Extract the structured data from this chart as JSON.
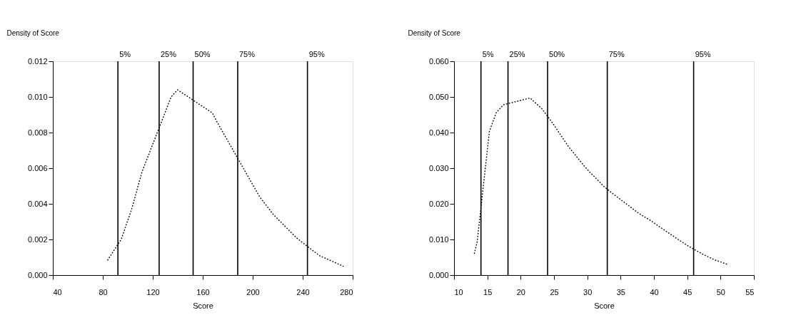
{
  "chart_data": [
    {
      "type": "line",
      "ylabel": "Density of Score",
      "xlabel": "Score",
      "x": [
        83.9,
        94.7,
        103.1,
        111.4,
        134.7,
        139.8,
        167.7,
        171.4,
        205.5,
        216.5,
        234.9,
        249.5,
        253.2,
        272.4
      ],
      "series": [
        {
          "color": "#000000",
          "values": [
            0.00085,
            0.002,
            0.0037,
            0.0058,
            0.01,
            0.0104,
            0.0091,
            0.0086,
            0.0044,
            0.0034,
            0.0021,
            0.0013,
            0.0011,
            0.0005
          ]
        }
      ],
      "xlim": [
        40,
        280
      ],
      "xticks": [
        40,
        80,
        120,
        160,
        200,
        240,
        280
      ],
      "ylim": [
        0,
        0.012
      ],
      "yticks": [
        {
          "value": 0,
          "label": "0.000"
        },
        {
          "value": 0.002,
          "label": "0.002"
        },
        {
          "value": 0.004,
          "label": "0.004"
        },
        {
          "value": 0.006,
          "label": "0.006"
        },
        {
          "value": 0.008,
          "label": "0.008"
        },
        {
          "value": 0.01,
          "label": "0.010"
        },
        {
          "value": 0.012,
          "label": "0.012"
        }
      ],
      "ref_lines": [
        {
          "axis": "x",
          "value": 92.1
        },
        {
          "axis": "x",
          "value": 125.1
        },
        {
          "axis": "x",
          "value": 152.3
        },
        {
          "axis": "x",
          "value": 188
        },
        {
          "axis": "x",
          "value": 243.8
        }
      ],
      "annotations": [
        {
          "text": "5%",
          "x": 92.1,
          "y": 0.012
        },
        {
          "text": "25%",
          "x": 125.1,
          "y": 0.012
        },
        {
          "text": "50%",
          "x": 152.3,
          "y": 0.012
        },
        {
          "text": "75%",
          "x": 188,
          "y": 0.012
        },
        {
          "text": "95%",
          "x": 243.8,
          "y": 0.012
        }
      ],
      "line_style": "dotted",
      "marker": "none",
      "grid": false,
      "legend": false
    },
    {
      "type": "line",
      "ylabel": "Density of Score",
      "xlabel": "Score",
      "x": [
        13.05,
        13.47,
        15.31,
        16.34,
        17.41,
        21.42,
        23.18,
        24.82,
        27.16,
        29.5,
        30.53,
        31.45,
        32.48,
        33.65,
        36.49,
        37.66,
        39.43,
        41.2,
        43.4,
        45.1,
        47.3,
        49.07,
        51.2
      ],
      "series": [
        {
          "color": "#000000",
          "values": [
            0.0061,
            0.0093,
            0.0404,
            0.0456,
            0.0478,
            0.0497,
            0.0467,
            0.0426,
            0.0361,
            0.0307,
            0.0286,
            0.0269,
            0.0249,
            0.0231,
            0.0191,
            0.0174,
            0.0154,
            0.0131,
            0.0103,
            0.0082,
            0.0059,
            0.0043,
            0.0029
          ]
        }
      ],
      "xlim": [
        10,
        55
      ],
      "xticks": [
        10,
        15,
        20,
        25,
        30,
        35,
        40,
        45,
        50,
        55
      ],
      "ylim": [
        0,
        0.06
      ],
      "yticks": [
        {
          "value": 0,
          "label": "0.000"
        },
        {
          "value": 0.01,
          "label": "0.010"
        },
        {
          "value": 0.02,
          "label": "0.020"
        },
        {
          "value": 0.03,
          "label": "0.030"
        },
        {
          "value": 0.04,
          "label": "0.040"
        },
        {
          "value": 0.05,
          "label": "0.050"
        },
        {
          "value": 0.06,
          "label": "0.060"
        }
      ],
      "ref_lines": [
        {
          "axis": "x",
          "value": 14.04
        },
        {
          "axis": "x",
          "value": 18.1
        },
        {
          "axis": "x",
          "value": 24.04
        },
        {
          "axis": "x",
          "value": 33.0
        },
        {
          "axis": "x",
          "value": 45.96
        }
      ],
      "annotations": [
        {
          "text": "5%",
          "x": 14.04,
          "y": 0.06
        },
        {
          "text": "25%",
          "x": 18.1,
          "y": 0.06
        },
        {
          "text": "50%",
          "x": 24.04,
          "y": 0.06
        },
        {
          "text": "75%",
          "x": 33.0,
          "y": 0.06
        },
        {
          "text": "95%",
          "x": 45.96,
          "y": 0.06
        }
      ],
      "line_style": "dotted",
      "marker": "none",
      "grid": false,
      "legend": false
    }
  ]
}
